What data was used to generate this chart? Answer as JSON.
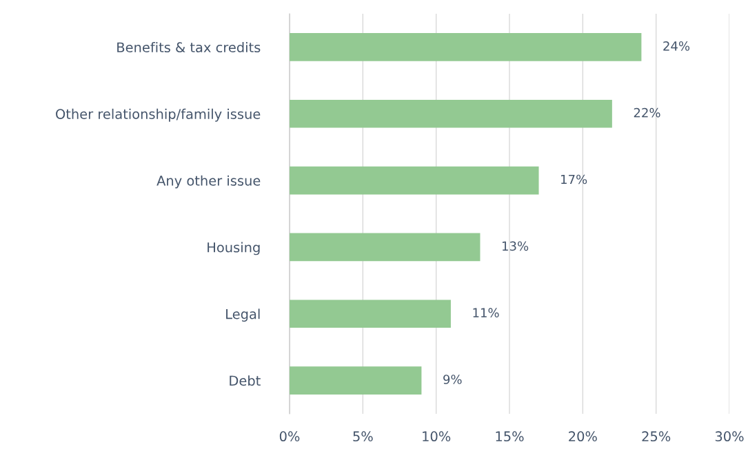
{
  "chart_data": {
    "type": "bar",
    "orientation": "horizontal",
    "categories": [
      "Benefits & tax credits",
      "Other relationship/family issue",
      "Any other issue",
      "Housing",
      "Legal",
      "Debt"
    ],
    "values": [
      24,
      22,
      17,
      13,
      11,
      9
    ],
    "value_labels": [
      "24%",
      "22%",
      "17%",
      "13%",
      "11%",
      "9%"
    ],
    "color": "#93c992",
    "xlim": [
      0,
      30
    ],
    "xticks": [
      {
        "value": 0,
        "label": "0%"
      },
      {
        "value": 5,
        "label": "5%"
      },
      {
        "value": 10,
        "label": "10%"
      },
      {
        "value": 15,
        "label": "15%"
      },
      {
        "value": 20,
        "label": "20%"
      },
      {
        "value": 25,
        "label": "25%"
      },
      {
        "value": 30,
        "label": "30%"
      }
    ],
    "grid": "x",
    "legend": false
  }
}
